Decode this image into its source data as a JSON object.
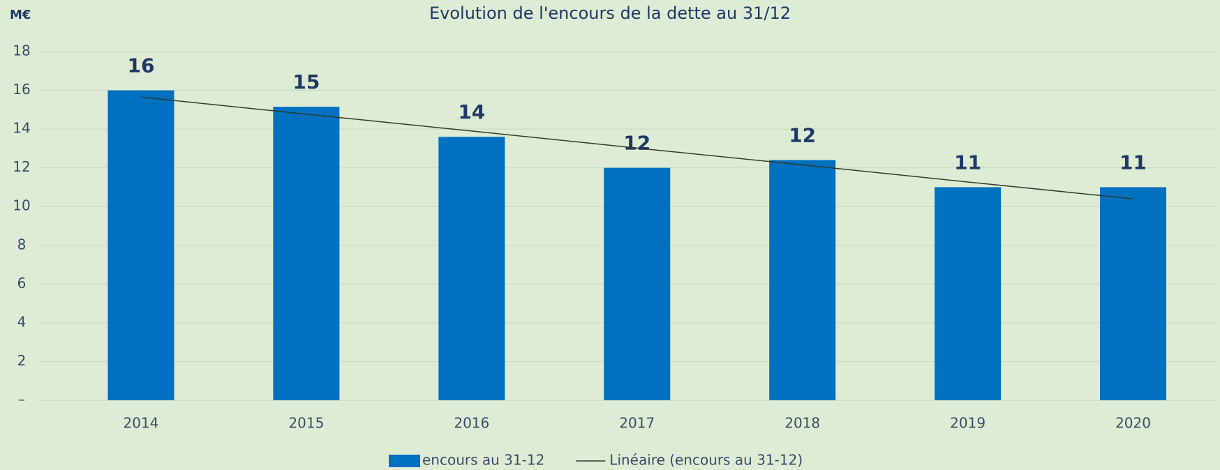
{
  "chart_data": {
    "type": "bar",
    "title": "Evolution de l'encours de la dette au 31/12",
    "y_axis_label": "M€",
    "categories": [
      "2014",
      "2015",
      "2016",
      "2017",
      "2018",
      "2019",
      "2020"
    ],
    "series": [
      {
        "name": "encours au 31-12",
        "type": "bar",
        "color": "#0070c0",
        "values": [
          16,
          15.15,
          13.6,
          12,
          12.4,
          11,
          11
        ],
        "value_labels": [
          "16",
          "15",
          "14",
          "12",
          "12",
          "11",
          "11"
        ]
      },
      {
        "name": "Linéaire (encours au 31-12)",
        "type": "line",
        "color": "#2f3b2f",
        "values": [
          15.65,
          14.77,
          13.9,
          13.02,
          12.15,
          11.27,
          10.4
        ]
      }
    ],
    "ylim": [
      0,
      18
    ],
    "yticks": [
      {
        "value": 0,
        "label": "–"
      },
      2,
      4,
      6,
      8,
      10,
      12,
      14,
      16,
      18
    ],
    "grid": true,
    "legend": "bottom"
  }
}
